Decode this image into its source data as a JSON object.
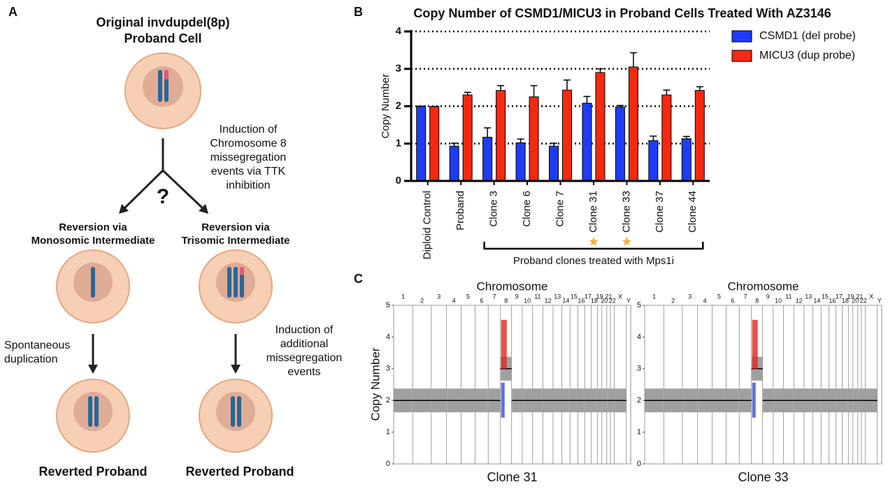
{
  "panel_labels": [
    "A",
    "B",
    "C"
  ],
  "diagram": {
    "title_lines": [
      "Original invdupdel(8p)",
      "Proband Cell"
    ],
    "induction_lines": [
      "Induction of",
      "Chromosome 8",
      "missegregation",
      "events via TTK",
      "inhibition"
    ],
    "question": "?",
    "left_branch_lines": [
      "Reversion via",
      "Monosomic Intermediate"
    ],
    "right_branch_lines": [
      "Reversion via",
      "Trisomic Intermediate"
    ],
    "left_step_lines": [
      "Spontaneous",
      "duplication"
    ],
    "right_step_lines": [
      "Induction of",
      "additional",
      "missegregation",
      "events"
    ],
    "left_result": "Reverted Proband",
    "right_result": "Reverted Proband"
  },
  "chart_data": [
    {
      "type": "bar",
      "title": "Copy Number of CSMD1/MICU3 in Proband Cells Treated With AZ3146",
      "ylabel": "Copy Number",
      "categories": [
        "Diploid Control",
        "Proband",
        "Clone 3",
        "Clone 6",
        "Clone 7",
        "Clone 31",
        "Clone 33",
        "Clone 37",
        "Clone 44"
      ],
      "series": [
        {
          "name": "CSMD1 (del probe)",
          "color": "#1f3cf5",
          "values": [
            2.0,
            0.93,
            1.17,
            1.02,
            0.93,
            2.08,
            1.98,
            1.08,
            1.13
          ],
          "errors": [
            0,
            0.08,
            0.25,
            0.1,
            0.08,
            0.18,
            0.04,
            0.12,
            0.06
          ]
        },
        {
          "name": "MICU3 (dup probe)",
          "color": "#f5290f",
          "values": [
            1.99,
            2.3,
            2.42,
            2.25,
            2.43,
            2.9,
            3.05,
            2.3,
            2.42
          ],
          "errors": [
            0,
            0.07,
            0.13,
            0.3,
            0.27,
            0.1,
            0.38,
            0.13,
            0.1
          ]
        }
      ],
      "annotation": "Proband clones treated with Mps1i",
      "ylim": [
        0,
        4
      ],
      "yticks": [
        0,
        1,
        2,
        3,
        4
      ],
      "grid": true
    },
    {
      "type": "copy-number",
      "title": "Chromosome",
      "xlabel": "Clone 31",
      "ylabel": "Copy Number",
      "categories": [
        "1",
        "2",
        "3",
        "4",
        "5",
        "6",
        "7",
        "8",
        "9",
        "10",
        "11",
        "12",
        "13",
        "14",
        "15",
        "16",
        "17",
        "18",
        "19",
        "20",
        "21",
        "22",
        "X",
        "Y"
      ],
      "values": [
        2,
        2,
        2,
        2,
        2,
        2,
        2,
        3,
        2,
        2,
        2,
        2,
        2,
        2,
        2,
        2,
        2,
        2,
        2,
        2,
        2,
        2,
        2,
        null
      ],
      "color": "#808080",
      "ylim": [
        0,
        5
      ],
      "yticks": [
        0,
        1,
        2,
        3,
        4,
        5
      ]
    },
    {
      "type": "copy-number",
      "title": "Chromosome",
      "xlabel": "Clone 33",
      "ylabel": "Copy Number",
      "categories": [
        "1",
        "2",
        "3",
        "4",
        "5",
        "6",
        "7",
        "8",
        "9",
        "10",
        "11",
        "12",
        "13",
        "14",
        "15",
        "16",
        "17",
        "18",
        "19",
        "20",
        "21",
        "22",
        "X",
        "Y"
      ],
      "values": [
        2,
        2,
        2,
        2,
        2,
        2,
        2,
        3,
        2,
        2,
        2,
        2,
        2,
        2,
        2,
        2,
        2,
        2,
        2,
        2,
        2,
        2,
        2,
        null
      ],
      "color": "#808080",
      "ylim": [
        0,
        5
      ],
      "yticks": [
        0,
        1,
        2,
        3,
        4,
        5
      ]
    }
  ]
}
